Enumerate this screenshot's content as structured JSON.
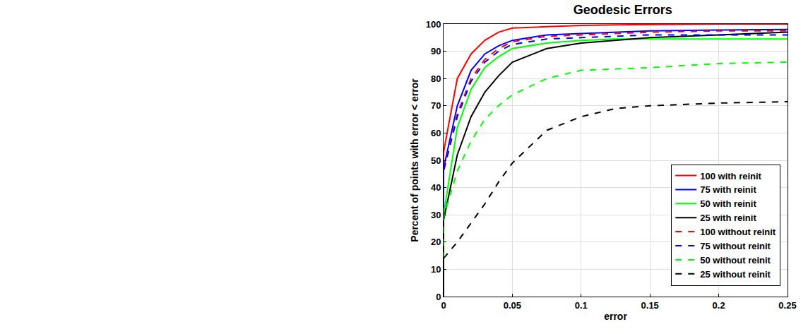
{
  "chart_data": {
    "type": "line",
    "title": "Geodesic Errors",
    "x_label": "error",
    "y_label": "Percent of points with error < error",
    "x": [
      0,
      0,
      0.01,
      0.02,
      0.03,
      0.04,
      0.05,
      0.075,
      0.1,
      0.125,
      0.15,
      0.2,
      0.25
    ],
    "series": [
      {
        "name": "100 with reinit",
        "color": "#ff0000",
        "line_style": "solid",
        "values": [
          0,
          53,
          80,
          89,
          94,
          97,
          98.5,
          99,
          99.5,
          99.7,
          99.8,
          100,
          100
        ]
      },
      {
        "name": "75 with reinit",
        "color": "#0000ff",
        "line_style": "solid",
        "values": [
          0,
          47,
          70,
          83,
          89,
          92,
          94,
          96,
          96.5,
          97,
          97.5,
          97.8,
          98
        ]
      },
      {
        "name": "50 with reinit",
        "color": "#00ff00",
        "line_style": "solid",
        "values": [
          0,
          30,
          62,
          76,
          84,
          88,
          91,
          93,
          94,
          94.5,
          94.5,
          94.5,
          94.5
        ]
      },
      {
        "name": "25 with reinit",
        "color": "#000000",
        "line_style": "solid",
        "values": [
          0,
          28,
          52,
          66,
          75,
          81,
          86,
          91,
          93,
          94,
          95,
          96,
          97
        ]
      },
      {
        "name": "100 without reinit",
        "color": "#ff0000",
        "line_style": "dash",
        "values": [
          0,
          46,
          67,
          80,
          87,
          91,
          93.5,
          95.5,
          96,
          96.5,
          97,
          97.5,
          97.5
        ]
      },
      {
        "name": "75 without reinit",
        "color": "#0000ff",
        "line_style": "dash",
        "values": [
          0,
          46,
          66,
          79,
          86,
          90,
          92.5,
          94.5,
          95,
          95.5,
          96,
          96,
          96
        ]
      },
      {
        "name": "50 without reinit",
        "color": "#00ff00",
        "line_style": "dash",
        "values": [
          0,
          29,
          46,
          57,
          65,
          70,
          74,
          80,
          83,
          83.5,
          84,
          85.5,
          86
        ]
      },
      {
        "name": "25 without reinit",
        "color": "#000000",
        "line_style": "dash",
        "values": [
          0,
          14,
          20,
          27,
          34,
          42,
          49,
          61,
          66,
          69,
          70,
          71,
          71.5
        ]
      }
    ],
    "xlim": [
      0,
      0.25
    ],
    "xticks": [
      0,
      0.05,
      0.1,
      0.15,
      0.2,
      0.25
    ],
    "ylim": [
      0,
      100
    ],
    "yticks": [
      0,
      10,
      20,
      30,
      40,
      50,
      60,
      70,
      80,
      90,
      100
    ],
    "grid": true,
    "legend": "bottom right"
  }
}
